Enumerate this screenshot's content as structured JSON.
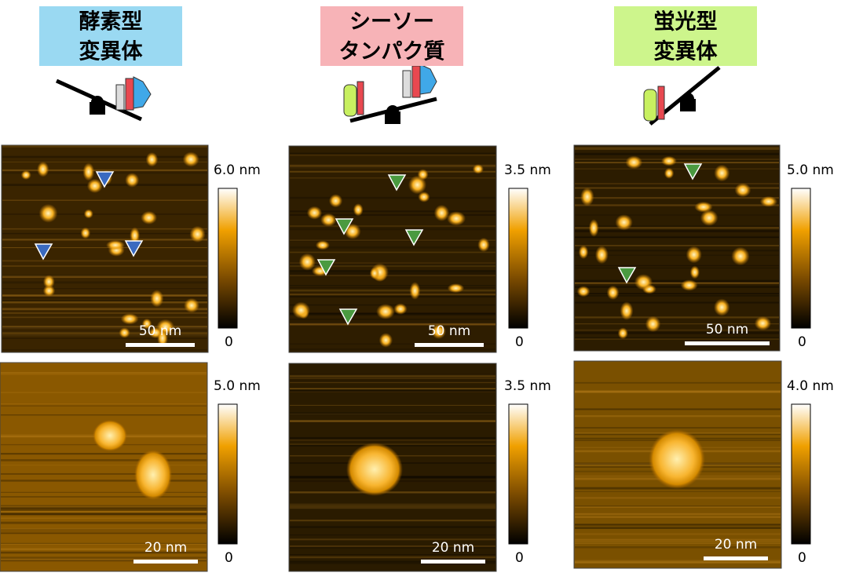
{
  "columns": [
    {
      "title": [
        "酵素型",
        "変異体"
      ],
      "color": "#9ad9f2",
      "panels": [
        {
          "scale_bar": "50 nm",
          "colorbar_max": "6.0 nm",
          "colorbar_min": "0"
        },
        {
          "scale_bar": "20 nm",
          "colorbar_max": "5.0 nm",
          "colorbar_min": "0"
        }
      ]
    },
    {
      "title": [
        "シーソー",
        "タンパク質"
      ],
      "color": "#f7b3b7",
      "panels": [
        {
          "scale_bar": "50 nm",
          "colorbar_max": "3.5 nm",
          "colorbar_min": "0"
        },
        {
          "scale_bar": "20 nm",
          "colorbar_max": "3.5 nm",
          "colorbar_min": "0"
        }
      ]
    },
    {
      "title": [
        "蛍光型",
        "変異体"
      ],
      "color": "#cdf58c",
      "panels": [
        {
          "scale_bar": "50 nm",
          "colorbar_max": "5.0 nm",
          "colorbar_min": "0"
        },
        {
          "scale_bar": "20 nm",
          "colorbar_max": "4.0 nm",
          "colorbar_min": "0"
        }
      ]
    }
  ]
}
